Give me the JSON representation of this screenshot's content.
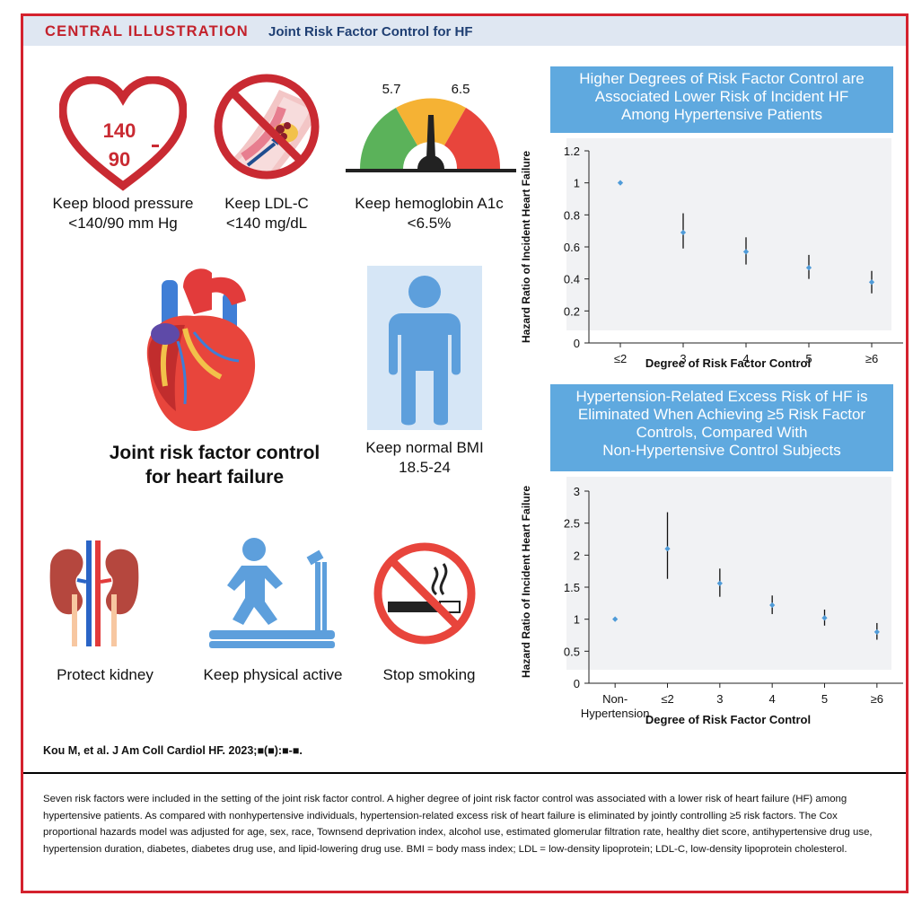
{
  "header": {
    "title": "CENTRAL ILLUSTRATION",
    "subtitle": "Joint Risk Factor Control for HF"
  },
  "icons": {
    "bp_top": "140",
    "bp_bottom": "90",
    "gauge_left": "5.7",
    "gauge_right": "6.5"
  },
  "labels": {
    "bp_line1": "Keep blood pressure",
    "bp_line2": "<140/90 mm Hg",
    "ldl_line1": "Keep LDL-C",
    "ldl_line2": "<140 mg/dL",
    "a1c_line1": "Keep hemoglobin A1c",
    "a1c_line2": "<6.5%",
    "heart_line1": "Joint risk factor control",
    "heart_line2": "for heart failure",
    "bmi_line1": "Keep normal BMI",
    "bmi_line2": "18.5-24",
    "kidney": "Protect kidney",
    "activity": "Keep physical active",
    "smoking": "Stop smoking"
  },
  "colors": {
    "accent_red": "#d4222e",
    "header_bg": "#dfe7f2",
    "banner_blue": "#5fa9df",
    "point_blue": "#4f9bd8"
  },
  "chart_data": [
    {
      "type": "scatter",
      "title": "Higher Degrees of Risk Factor Control are Associated Lower Risk of Incident HF Among Hypertensive Patients",
      "title_lines": [
        "Higher Degrees of Risk Factor Control are",
        "Associated Lower Risk of Incident HF",
        "Among Hypertensive Patients"
      ],
      "categories": [
        "≤2",
        "3",
        "4",
        "5",
        "≥6"
      ],
      "values": [
        1.0,
        0.69,
        0.57,
        0.47,
        0.38
      ],
      "ci_low": [
        null,
        0.59,
        0.49,
        0.4,
        0.31
      ],
      "ci_high": [
        null,
        0.81,
        0.66,
        0.55,
        0.45
      ],
      "xlabel": "Degree of Risk Factor Control",
      "ylabel": "Hazard Ratio of Incident Heart Failure",
      "ylim": [
        0,
        1.2
      ],
      "yticks": [
        "0",
        "0.2",
        "0.4",
        "0.6",
        "0.8",
        "1",
        "1.2"
      ],
      "grid": false
    },
    {
      "type": "scatter",
      "title": "Hypertension-Related Excess Risk of HF is Eliminated When Achieving ≥5 Risk Factor Controls, Compared With Non-Hypertensive Control Subjects",
      "title_lines": [
        "Hypertension-Related Excess Risk of HF is",
        "Eliminated When Achieving ≥5 Risk Factor",
        "Controls, Compared With",
        "Non-Hypertensive Control Subjects"
      ],
      "categories": [
        "Non-\nHypertension",
        "≤2",
        "3",
        "4",
        "5",
        "≥6"
      ],
      "category_lines": [
        [
          "Non-",
          "Hypertension"
        ],
        [
          "≤2"
        ],
        [
          "3"
        ],
        [
          "4"
        ],
        [
          "5"
        ],
        [
          "≥6"
        ]
      ],
      "values": [
        1.0,
        2.1,
        1.56,
        1.22,
        1.02,
        0.8
      ],
      "ci_low": [
        null,
        1.63,
        1.35,
        1.08,
        0.9,
        0.68
      ],
      "ci_high": [
        null,
        2.67,
        1.79,
        1.37,
        1.15,
        0.94
      ],
      "xlabel": "Degree of Risk Factor Control",
      "ylabel": "Hazard Ratio of Incident Heart Failure",
      "ylim": [
        0,
        3
      ],
      "yticks": [
        "0",
        "0.5",
        "1",
        "1.5",
        "2",
        "2.5",
        "3"
      ],
      "grid": false
    }
  ],
  "citation": "Kou M, et al. J Am Coll Cardiol HF. 2023;■(■):■-■.",
  "caption": "Seven risk factors were included in the setting of the joint risk factor control. A higher degree of joint risk factor control was associated with a lower risk of heart failure (HF) among hypertensive patients. As compared with nonhypertensive individuals, hypertension-related excess risk of heart failure is eliminated by jointly controlling ≥5 risk factors. The Cox proportional hazards model was adjusted for age, sex, race, Townsend deprivation index, alcohol use, estimated glomerular filtration rate, healthy diet score, antihypertensive drug use, hypertension duration, diabetes, diabetes drug use, and lipid-lowering drug use. BMI = body mass index; LDL = low-density lipoprotein; LDL-C, low-density lipoprotein cholesterol."
}
